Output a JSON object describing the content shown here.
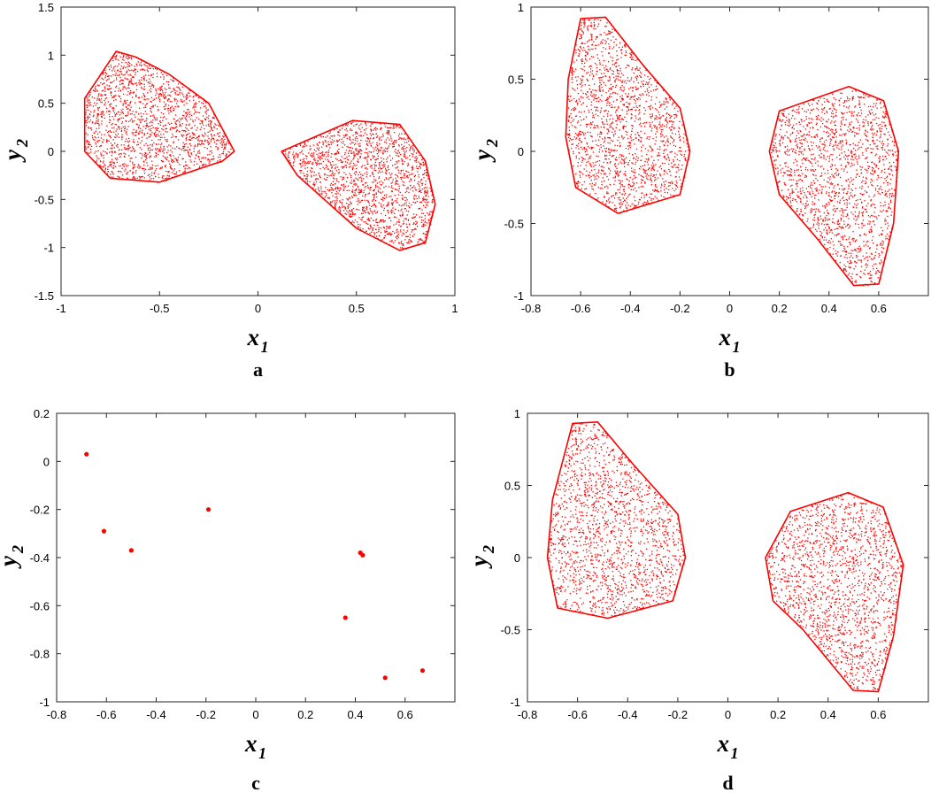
{
  "chart_data": [
    {
      "type": "scatter",
      "panel_label": "a",
      "xlabel": "x",
      "xlabel_sub": "1",
      "ylabel": "y",
      "ylabel_sub": "2",
      "xlim": [
        -1,
        1
      ],
      "ylim": [
        -1.5,
        1.5
      ],
      "xticks": [
        -1,
        -0.5,
        0,
        0.5,
        1
      ],
      "yticks": [
        -1.5,
        -1,
        -0.5,
        0,
        0.5,
        1,
        1.5
      ],
      "grid": false,
      "color": "#ff0000",
      "series": [
        {
          "region": [
            [
              -0.88,
              0.55
            ],
            [
              -0.72,
              1.04
            ],
            [
              -0.62,
              0.98
            ],
            [
              -0.45,
              0.8
            ],
            [
              -0.25,
              0.5
            ],
            [
              -0.12,
              0.0
            ],
            [
              -0.18,
              -0.1
            ],
            [
              -0.5,
              -0.32
            ],
            [
              -0.75,
              -0.28
            ],
            [
              -0.88,
              0.0
            ]
          ]
        },
        {
          "region": [
            [
              0.12,
              0.0
            ],
            [
              0.48,
              0.32
            ],
            [
              0.72,
              0.28
            ],
            [
              0.85,
              -0.1
            ],
            [
              0.9,
              -0.55
            ],
            [
              0.85,
              -0.95
            ],
            [
              0.72,
              -1.03
            ],
            [
              0.5,
              -0.8
            ],
            [
              0.2,
              -0.25
            ]
          ]
        }
      ]
    },
    {
      "type": "scatter",
      "panel_label": "b",
      "xlabel": "x",
      "xlabel_sub": "1",
      "ylabel": "y",
      "ylabel_sub": "2",
      "xlim": [
        -0.8,
        0.8
      ],
      "ylim": [
        -1,
        1
      ],
      "xticks": [
        -0.8,
        -0.6,
        -0.4,
        -0.2,
        0,
        0.2,
        0.4,
        0.6
      ],
      "yticks": [
        -1,
        -0.5,
        0,
        0.5,
        1
      ],
      "grid": false,
      "color": "#ff0000",
      "series": [
        {
          "region": [
            [
              -0.65,
              0.5
            ],
            [
              -0.6,
              0.92
            ],
            [
              -0.5,
              0.93
            ],
            [
              -0.35,
              0.6
            ],
            [
              -0.2,
              0.3
            ],
            [
              -0.16,
              0.0
            ],
            [
              -0.2,
              -0.3
            ],
            [
              -0.45,
              -0.43
            ],
            [
              -0.62,
              -0.25
            ],
            [
              -0.66,
              0.1
            ]
          ]
        },
        {
          "region": [
            [
              0.16,
              0.0
            ],
            [
              0.2,
              0.28
            ],
            [
              0.48,
              0.45
            ],
            [
              0.62,
              0.35
            ],
            [
              0.68,
              0.0
            ],
            [
              0.66,
              -0.5
            ],
            [
              0.6,
              -0.92
            ],
            [
              0.5,
              -0.93
            ],
            [
              0.35,
              -0.6
            ],
            [
              0.2,
              -0.3
            ]
          ]
        }
      ]
    },
    {
      "type": "scatter",
      "panel_label": "c",
      "xlabel": "x",
      "xlabel_sub": "1",
      "ylabel": "y",
      "ylabel_sub": "2",
      "xlim": [
        -0.8,
        0.8
      ],
      "ylim": [
        -1,
        0.2
      ],
      "xticks": [
        -0.8,
        -0.6,
        -0.4,
        -0.2,
        0,
        0.2,
        0.4,
        0.6
      ],
      "yticks": [
        -1,
        -0.8,
        -0.6,
        -0.4,
        -0.2,
        0,
        0.2
      ],
      "grid": false,
      "color": "#ff0000",
      "points": [
        [
          -0.68,
          0.03
        ],
        [
          -0.61,
          -0.29
        ],
        [
          -0.5,
          -0.37
        ],
        [
          -0.19,
          -0.2
        ],
        [
          0.42,
          -0.38
        ],
        [
          0.43,
          -0.39
        ],
        [
          0.36,
          -0.65
        ],
        [
          0.52,
          -0.9
        ],
        [
          0.67,
          -0.87
        ]
      ]
    },
    {
      "type": "scatter",
      "panel_label": "d",
      "xlabel": "x",
      "xlabel_sub": "1",
      "ylabel": "y",
      "ylabel_sub": "2",
      "xlim": [
        -0.8,
        0.8
      ],
      "ylim": [
        -1,
        1
      ],
      "xticks": [
        -0.8,
        -0.6,
        -0.4,
        -0.2,
        0,
        0.2,
        0.4,
        0.6
      ],
      "yticks": [
        -1,
        -0.5,
        0,
        0.5,
        1
      ],
      "grid": false,
      "color": "#ff0000",
      "series": [
        {
          "region": [
            [
              -0.7,
              0.4
            ],
            [
              -0.62,
              0.93
            ],
            [
              -0.52,
              0.94
            ],
            [
              -0.38,
              0.65
            ],
            [
              -0.2,
              0.3
            ],
            [
              -0.17,
              0.0
            ],
            [
              -0.22,
              -0.3
            ],
            [
              -0.48,
              -0.42
            ],
            [
              -0.68,
              -0.35
            ],
            [
              -0.72,
              0.0
            ]
          ]
        },
        {
          "region": [
            [
              0.15,
              0.0
            ],
            [
              0.25,
              0.32
            ],
            [
              0.48,
              0.45
            ],
            [
              0.62,
              0.35
            ],
            [
              0.7,
              -0.05
            ],
            [
              0.66,
              -0.55
            ],
            [
              0.6,
              -0.93
            ],
            [
              0.5,
              -0.92
            ],
            [
              0.3,
              -0.5
            ],
            [
              0.18,
              -0.3
            ]
          ]
        }
      ]
    }
  ]
}
